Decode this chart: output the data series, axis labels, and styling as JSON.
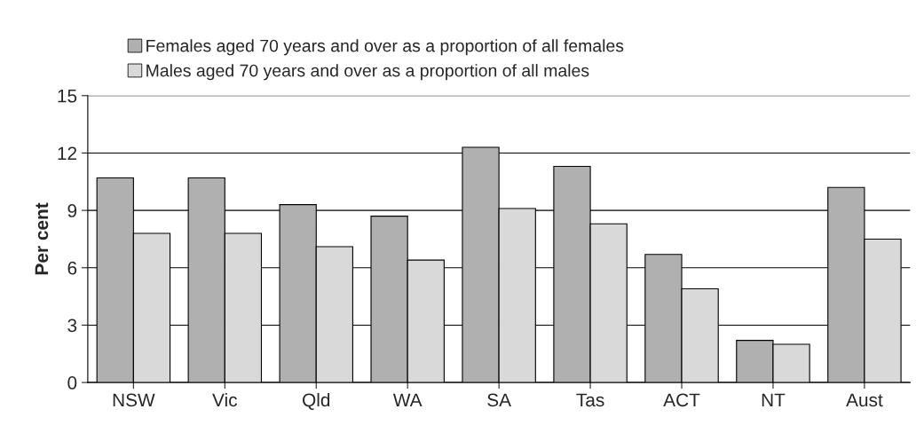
{
  "chart_data": {
    "type": "bar",
    "ylabel": "Per cent",
    "categories": [
      "NSW",
      "Vic",
      "Qld",
      "WA",
      "SA",
      "Tas",
      "ACT",
      "NT",
      "Aust"
    ],
    "series": [
      {
        "name": "Females aged 70 years and over as a proportion of all females",
        "color": "#b0b0b0",
        "values": [
          10.7,
          10.7,
          9.3,
          8.7,
          12.3,
          11.3,
          6.7,
          2.2,
          10.2
        ]
      },
      {
        "name": "Males aged 70 years and over as a proportion of all males",
        "color": "#d9d9d9",
        "values": [
          7.8,
          7.8,
          7.1,
          6.4,
          9.1,
          8.3,
          4.9,
          2.0,
          7.5
        ]
      }
    ],
    "ylim": [
      0,
      15
    ],
    "yticks": [
      0,
      3,
      6,
      9,
      12,
      15
    ],
    "grid": "y",
    "legend": "top"
  }
}
